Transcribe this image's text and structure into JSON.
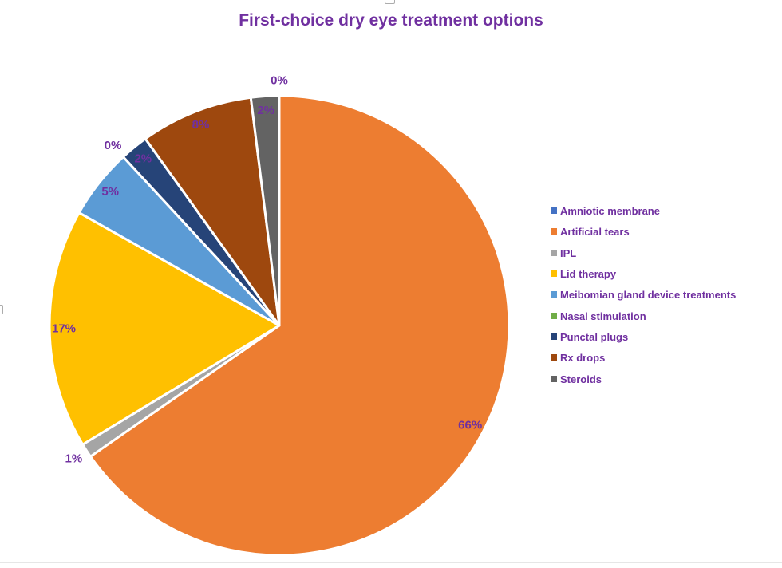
{
  "chart_data": {
    "type": "pie",
    "title": "First-choice dry eye treatment options",
    "title_color": "#7030A0",
    "legend_position": "right",
    "start_angle_deg": 0,
    "direction": "clockwise",
    "label_color": "#7030A0",
    "slice_gap_color": "#ffffff",
    "categories": [
      "Amniotic membrane",
      "Artificial tears",
      "IPL",
      "Lid therapy",
      "Meibomian gland device treatments",
      "Nasal stimulation",
      "Punctal plugs",
      "Rx drops",
      "Steroids"
    ],
    "values": [
      0,
      66,
      1,
      17,
      5,
      0,
      2,
      8,
      2
    ],
    "slices": [
      {
        "label": "Amniotic membrane",
        "value_pct": 0,
        "display": "0%",
        "color": "#4472C4"
      },
      {
        "label": "Artificial tears",
        "value_pct": 66,
        "display": "66%",
        "color": "#ED7D31"
      },
      {
        "label": "IPL",
        "value_pct": 1,
        "display": "1%",
        "color": "#A5A5A5"
      },
      {
        "label": "Lid therapy",
        "value_pct": 17,
        "display": "17%",
        "color": "#FFC000"
      },
      {
        "label": "Meibomian gland device treatments",
        "value_pct": 5,
        "display": "5%",
        "color": "#5B9BD5"
      },
      {
        "label": "Nasal stimulation",
        "value_pct": 0,
        "display": "0%",
        "color": "#70AD47"
      },
      {
        "label": "Punctal plugs",
        "value_pct": 2,
        "display": "2%",
        "color": "#264478"
      },
      {
        "label": "Rx drops",
        "value_pct": 8,
        "display": "8%",
        "color": "#9E480E"
      },
      {
        "label": "Steroids",
        "value_pct": 2,
        "display": "2%",
        "color": "#636363"
      }
    ]
  }
}
